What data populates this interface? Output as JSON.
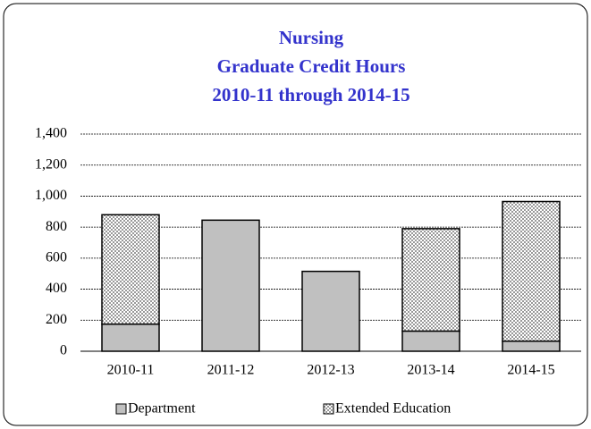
{
  "chart_data": {
    "type": "stacked-bar",
    "title": [
      "Nursing",
      "Graduate Credit Hours",
      "2010-11 through 2014-15"
    ],
    "categories": [
      "2010-11",
      "2011-12",
      "2012-13",
      "2013-14",
      "2014-15"
    ],
    "series": [
      {
        "name": "Department",
        "color": "#c0c0c0",
        "values": [
          175,
          845,
          515,
          130,
          65
        ]
      },
      {
        "name": "Extended Education",
        "color": "#d9d9d9",
        "pattern": true,
        "values": [
          705,
          0,
          0,
          660,
          900
        ]
      }
    ],
    "ylim": [
      0,
      1400
    ],
    "yticks": [
      0,
      200,
      400,
      600,
      800,
      {
        "value": 1000,
        "label": "1,000"
      },
      {
        "value": 1200,
        "label": "1,200"
      },
      {
        "value": 1400,
        "label": "1,400"
      }
    ],
    "grid": true,
    "legend": "bottom",
    "title_color": "#3333cc"
  }
}
